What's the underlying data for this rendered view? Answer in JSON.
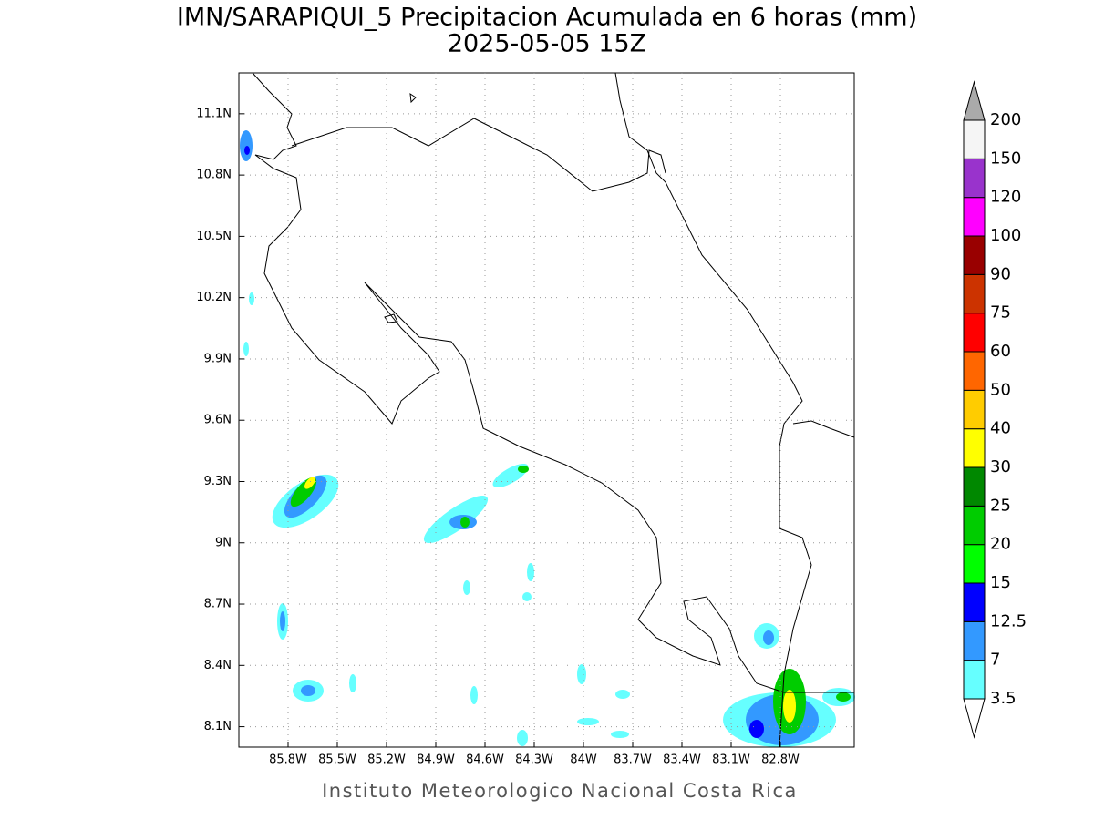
{
  "title": "IMN/SARAPIQUI_5 Precipitacion Acumulada en 6 horas (mm)",
  "subtitle": "2025-05-05 15Z",
  "footer": "Instituto Meteorologico Nacional Costa Rica",
  "map": {
    "lonlim": [
      -86.1,
      -82.35
    ],
    "latlim": [
      8.0,
      11.3
    ],
    "lon_ticks": [
      {
        "value": -85.8,
        "label": "85.8W"
      },
      {
        "value": -85.5,
        "label": "85.5W"
      },
      {
        "value": -85.2,
        "label": "85.2W"
      },
      {
        "value": -84.9,
        "label": "84.9W"
      },
      {
        "value": -84.6,
        "label": "84.6W"
      },
      {
        "value": -84.3,
        "label": "84.3W"
      },
      {
        "value": -84.0,
        "label": "84W"
      },
      {
        "value": -83.7,
        "label": "83.7W"
      },
      {
        "value": -83.4,
        "label": "83.4W"
      },
      {
        "value": -83.1,
        "label": "83.1W"
      },
      {
        "value": -82.8,
        "label": "82.8W"
      }
    ],
    "lat_ticks": [
      {
        "value": 11.1,
        "label": "11.1N"
      },
      {
        "value": 10.8,
        "label": "10.8N"
      },
      {
        "value": 10.5,
        "label": "10.5N"
      },
      {
        "value": 10.2,
        "label": "10.2N"
      },
      {
        "value": 9.9,
        "label": "9.9N"
      },
      {
        "value": 9.6,
        "label": "9.6N"
      },
      {
        "value": 9.3,
        "label": "9.3N"
      },
      {
        "value": 9.0,
        "label": "9N"
      },
      {
        "value": 8.7,
        "label": "8.7N"
      },
      {
        "value": 8.4,
        "label": "8.4N"
      },
      {
        "value": 8.1,
        "label": "8.1N"
      }
    ]
  },
  "colorbar": {
    "levels": [
      3.5,
      7,
      12.5,
      15,
      20,
      25,
      30,
      40,
      50,
      60,
      75,
      90,
      100,
      120,
      150,
      200
    ],
    "colors": [
      "#66ffff",
      "#3399ff",
      "#0000ff",
      "#00ff00",
      "#00cc00",
      "#008800",
      "#ffff00",
      "#ffcc00",
      "#ff6600",
      "#ff0000",
      "#cc3300",
      "#990000",
      "#ff00ff",
      "#9933cc",
      "#f5f5f5"
    ],
    "under_color": "#ffffff",
    "over_color": "#aaaaaa"
  }
}
